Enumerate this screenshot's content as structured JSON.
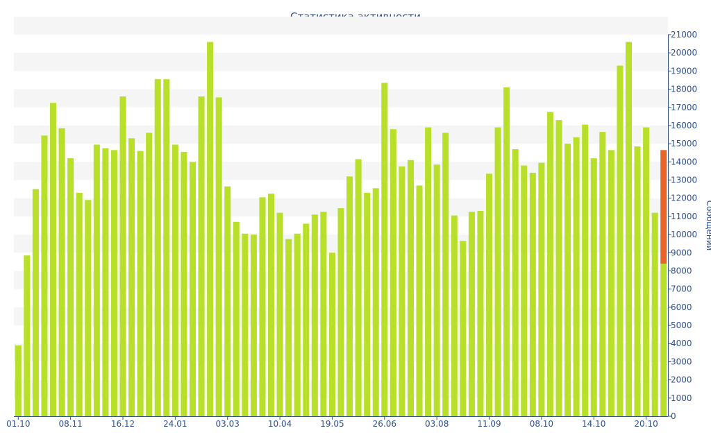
{
  "chart_data": {
    "type": "bar",
    "title": "Статистика активности",
    "ylabel": "Сообщений",
    "xlabel": "",
    "ylim": [
      0,
      21000
    ],
    "y_ticks": [
      0,
      1000,
      2000,
      3000,
      4000,
      5000,
      6000,
      7000,
      8000,
      9000,
      10000,
      11000,
      12000,
      13000,
      14000,
      15000,
      16000,
      17000,
      18000,
      19000,
      20000,
      21000
    ],
    "x_tick_labels": [
      {
        "index": 0,
        "label": "01.10"
      },
      {
        "index": 6,
        "label": "08.11"
      },
      {
        "index": 12,
        "label": "16.12"
      },
      {
        "index": 18,
        "label": "24.01"
      },
      {
        "index": 24,
        "label": "03.03"
      },
      {
        "index": 30,
        "label": "10.04"
      },
      {
        "index": 36,
        "label": "19.05"
      },
      {
        "index": 42,
        "label": "26.06"
      },
      {
        "index": 48,
        "label": "03.08"
      },
      {
        "index": 54,
        "label": "11.09"
      },
      {
        "index": 60,
        "label": "08.10"
      },
      {
        "index": 66,
        "label": "14.10"
      },
      {
        "index": 72,
        "label": "20.10"
      }
    ],
    "values": [
      3900,
      8850,
      12500,
      15450,
      17250,
      15850,
      14200,
      12300,
      11900,
      14950,
      14750,
      14650,
      17600,
      15300,
      14600,
      15600,
      18550,
      18550,
      14950,
      14550,
      14000,
      17600,
      20600,
      17550,
      12650,
      10700,
      10050,
      10000,
      12050,
      12250,
      11200,
      9750,
      10050,
      10600,
      11100,
      11250,
      9000,
      11450,
      13200,
      14150,
      12300,
      12550,
      18350,
      15800,
      13750,
      14100,
      12700,
      15900,
      13850,
      15600,
      11050,
      9650,
      11250,
      11300,
      13350,
      15900,
      18100,
      14700,
      13800,
      13400,
      13950,
      16750,
      16300,
      15000,
      15350,
      16050,
      14200,
      15650,
      14650,
      19300,
      20600,
      14850,
      15900,
      11200
    ],
    "current": {
      "value": 14650,
      "base": 8400
    },
    "colors": {
      "bar": "#b8df2a",
      "current": "#e8652a",
      "text": "#2f4f8f",
      "stripe": "#f5f5f5",
      "axis": "#2f4f8f"
    }
  }
}
